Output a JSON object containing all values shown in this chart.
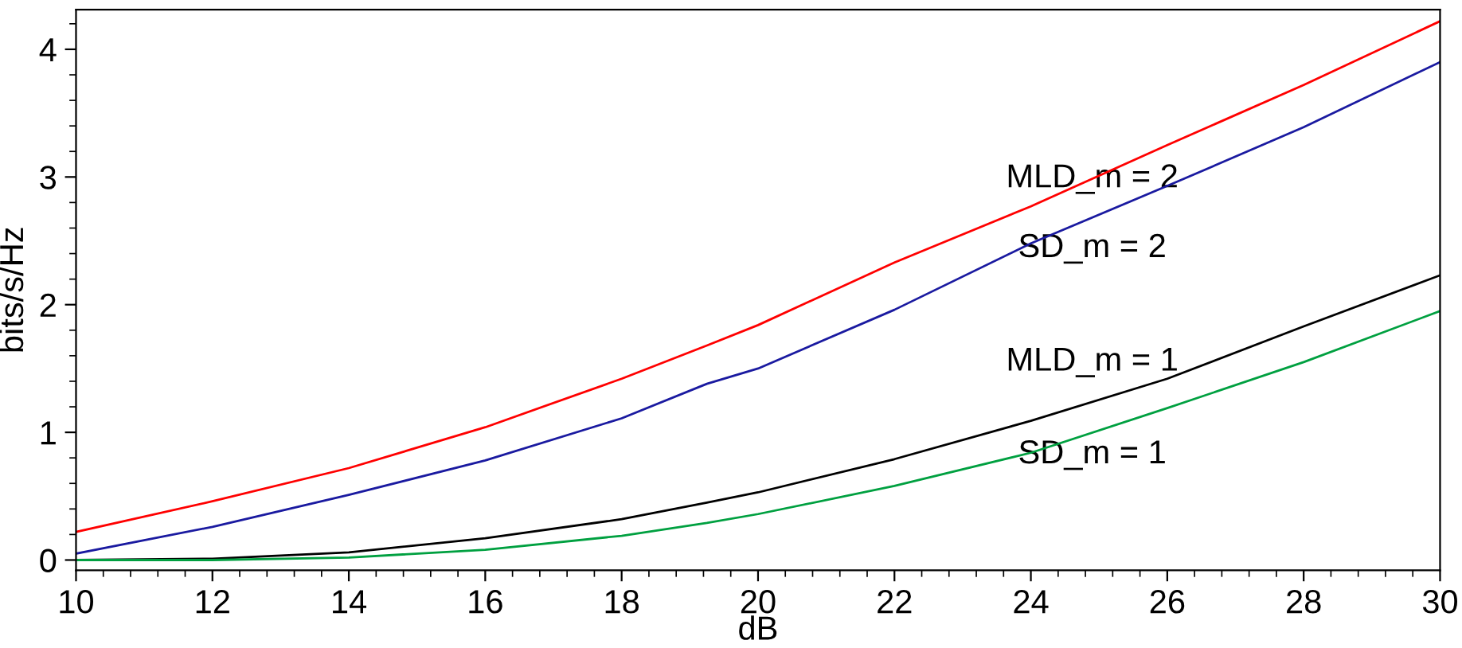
{
  "chart_data": {
    "type": "line",
    "xlabel": "dB",
    "ylabel": "bits/s/Hz",
    "x": [
      10,
      12,
      14,
      16,
      18,
      19.25,
      20,
      22,
      24,
      26,
      28,
      30
    ],
    "xlim": [
      10,
      30
    ],
    "xticks": [
      10,
      12,
      14,
      16,
      18,
      20,
      22,
      24,
      26,
      28,
      30
    ],
    "ylim": [
      -0.08,
      4.31
    ],
    "yticks": [
      0,
      1,
      2,
      3,
      4
    ],
    "grid": false,
    "legend": false,
    "marker": "none",
    "line_style": "solid",
    "series": [
      {
        "name": "MLD_m = 2",
        "color": "#ff0000",
        "values": [
          0.22,
          0.46,
          0.72,
          1.04,
          1.42,
          1.68,
          1.84,
          2.33,
          2.77,
          3.25,
          3.72,
          4.22
        ]
      },
      {
        "name": "SD_m = 2",
        "color": "#1a1aa0",
        "values": [
          0.05,
          0.26,
          0.51,
          0.78,
          1.11,
          1.38,
          1.5,
          1.96,
          2.48,
          2.93,
          3.39,
          3.9
        ]
      },
      {
        "name": "MLD_m = 1",
        "color": "#000000",
        "values": [
          0,
          0.01,
          0.06,
          0.17,
          0.32,
          0.45,
          0.53,
          0.79,
          1.09,
          1.42,
          1.83,
          2.23
        ]
      },
      {
        "name": "SD_m = 1",
        "color": "#00a040",
        "values": [
          0,
          0,
          0.02,
          0.08,
          0.19,
          0.29,
          0.36,
          0.58,
          0.84,
          1.19,
          1.55,
          1.95
        ]
      }
    ]
  }
}
